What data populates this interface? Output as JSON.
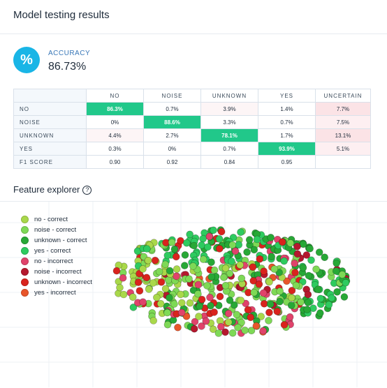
{
  "header": {
    "title": "Model testing results"
  },
  "accuracy": {
    "icon": "percent-icon",
    "icon_glyph": "%",
    "label": "ACCURACY",
    "value": "86.73%"
  },
  "confusion_matrix": {
    "columns": [
      "NO",
      "NOISE",
      "UNKNOWN",
      "YES",
      "UNCERTAIN"
    ],
    "rows": [
      {
        "label": "NO",
        "cells": [
          "86.3%",
          "0.7%",
          "3.9%",
          "1.4%",
          "7.7%"
        ]
      },
      {
        "label": "NOISE",
        "cells": [
          "0%",
          "88.6%",
          "3.3%",
          "0.7%",
          "7.5%"
        ]
      },
      {
        "label": "UNKNOWN",
        "cells": [
          "4.4%",
          "2.7%",
          "78.1%",
          "1.7%",
          "13.1%"
        ]
      },
      {
        "label": "YES",
        "cells": [
          "0.3%",
          "0%",
          "0.7%",
          "93.9%",
          "5.1%"
        ]
      },
      {
        "label": "F1 SCORE",
        "cells": [
          "0.90",
          "0.92",
          "0.84",
          "0.95",
          ""
        ]
      }
    ]
  },
  "feature_explorer": {
    "title": "Feature explorer",
    "help_icon": "question-circle-icon",
    "legend": [
      {
        "label": "no - correct",
        "color": "#a9d84a"
      },
      {
        "label": "noise - correct",
        "color": "#7ed956"
      },
      {
        "label": "unknown - correct",
        "color": "#27a836"
      },
      {
        "label": "yes - correct",
        "color": "#2ecb5f"
      },
      {
        "label": "no - incorrect",
        "color": "#e0436b"
      },
      {
        "label": "noise - incorrect",
        "color": "#b5182e"
      },
      {
        "label": "unknown - incorrect",
        "color": "#d9231d"
      },
      {
        "label": "yes - incorrect",
        "color": "#e8552a"
      }
    ]
  }
}
